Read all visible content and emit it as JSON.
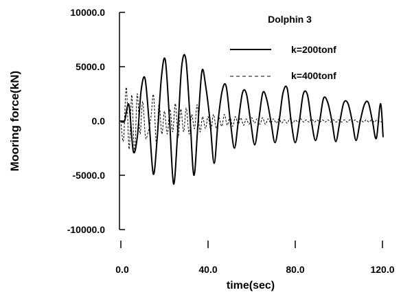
{
  "chart_data": {
    "type": "line",
    "title": "Dolphin 3",
    "xlabel": "time(sec)",
    "ylabel": "Mooring force(kN)",
    "xlim": [
      0,
      120
    ],
    "ylim": [
      -10000,
      10000
    ],
    "xticks": [
      "0.0",
      "40.0",
      "80.0",
      "120.0"
    ],
    "yticks": [
      "10000.0",
      "5000.0",
      "0.0",
      "-5000.0",
      "-10000.0"
    ],
    "grid": false,
    "legend_position": "top-right",
    "series": [
      {
        "name": "k=200tonf",
        "style": "solid",
        "x": [
          0,
          1.7,
          3.7,
          5.7,
          7.6,
          9.3,
          11.1,
          13.0,
          14.9,
          16.7,
          18.6,
          20.4,
          22.3,
          24.2,
          26.1,
          27.9,
          29.8,
          31.7,
          33.5,
          35.3,
          37.2,
          39.0,
          40.9,
          42.8,
          44.6,
          46.5,
          48.3,
          50.2,
          52.1,
          53.9,
          55.8,
          57.6,
          59.5,
          61.4,
          63.2,
          65.1,
          66.9,
          68.8,
          70.7,
          72.6,
          74.4,
          76.3,
          78.1,
          80.0,
          81.9,
          83.7,
          85.6,
          87.4,
          89.3,
          91.2,
          93.0,
          94.9,
          96.8,
          98.6,
          100.5,
          102.3,
          104.2,
          106.1,
          107.9,
          109.8,
          111.7,
          113.5,
          115.4,
          117.2,
          119.1,
          120.3
        ],
        "y": [
          0,
          0,
          1500,
          -2800,
          -1400,
          2800,
          3900,
          -200,
          -4900,
          -1500,
          4000,
          5600,
          200,
          -5800,
          -900,
          5000,
          5700,
          400,
          -5000,
          -500,
          4600,
          3100,
          0,
          -3900,
          0,
          2800,
          3200,
          0,
          -2500,
          0,
          2600,
          2500,
          0,
          -2200,
          0,
          2600,
          2000,
          0,
          -2000,
          0,
          2600,
          3000,
          0,
          -2000,
          0,
          2500,
          2400,
          0,
          -1800,
          0,
          2100,
          1700,
          0,
          -1900,
          0,
          1700,
          1600,
          0,
          -1800,
          0,
          1500,
          1700,
          0,
          -1600,
          1600,
          -1500
        ]
      },
      {
        "name": "k=400tonf",
        "style": "dashed",
        "x": [
          0,
          1.2,
          2.5,
          3.8,
          5.0,
          6.3,
          7.5,
          8.8,
          10.0,
          11.3,
          12.5,
          13.8,
          15.0,
          16.3,
          17.5,
          18.8,
          20.0,
          21.3,
          22.5,
          23.8,
          25.0,
          26.3,
          27.5,
          28.8,
          30.0,
          31.3,
          32.5,
          33.8,
          35.0,
          36.3,
          37.5,
          38.8,
          40.0,
          41.3,
          42.5,
          43.8,
          45.0,
          46.3,
          47.5,
          48.8,
          50.0,
          51.3,
          52.5,
          53.8,
          55.0,
          56.3,
          57.5,
          58.8,
          60.0,
          61.3,
          62.5,
          63.8,
          65.0,
          66.3,
          67.5,
          68.8,
          70.0,
          71.3,
          72.5,
          73.8,
          75.0,
          76.3,
          77.5,
          78.8,
          80.0,
          81.3,
          82.5,
          83.8,
          85.0,
          86.3,
          87.5,
          88.8,
          90.0,
          91.3,
          92.5,
          93.8,
          95.0,
          96.3,
          97.5,
          98.8,
          100.0,
          101.3,
          102.5,
          103.8,
          105.0,
          106.3,
          107.5,
          108.8,
          110.0,
          111.3,
          112.5,
          113.8,
          115.0,
          116.3,
          117.5,
          118.8,
          120.0
        ],
        "y": [
          0,
          -1800,
          3100,
          -2600,
          2400,
          -3000,
          2500,
          -1200,
          1800,
          -1500,
          -1000,
          300,
          2400,
          -2100,
          1600,
          -1200,
          900,
          -1200,
          1100,
          -1000,
          1600,
          -1500,
          1100,
          -1000,
          1200,
          -1200,
          600,
          -700,
          1500,
          -1000,
          400,
          -700,
          400,
          -800,
          600,
          -700,
          300,
          -500,
          600,
          -400,
          400,
          -500,
          400,
          -300,
          300,
          -400,
          200,
          -300,
          300,
          -200,
          200,
          -300,
          300,
          -300,
          200,
          -200,
          200,
          -200,
          200,
          -200,
          100,
          -200,
          200,
          -200,
          100,
          -100,
          200,
          -100,
          100,
          -100,
          200,
          -100,
          100,
          -100,
          100,
          -100,
          100,
          -100,
          100,
          -100,
          100,
          -100,
          100,
          -100,
          100,
          -100,
          100,
          -100,
          100,
          -100,
          100,
          -100,
          100,
          -100,
          100,
          -100,
          0
        ]
      }
    ]
  }
}
